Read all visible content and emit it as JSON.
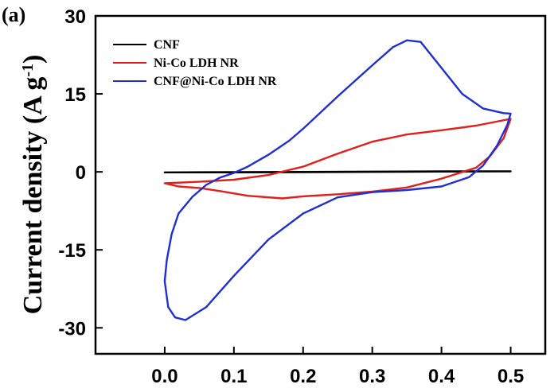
{
  "chart_data": {
    "type": "line",
    "panel_label": "(a)",
    "title": "",
    "xlabel": "",
    "ylabel": "Current density (A g-1)",
    "ylabel_parts": {
      "main": "Current density (A g",
      "sup": "-1",
      "end": ")"
    },
    "xlim": [
      -0.1,
      0.55
    ],
    "ylim": [
      -35,
      30
    ],
    "xticks": [
      0.0,
      0.1,
      0.2,
      0.3,
      0.4,
      0.5
    ],
    "xtick_labels": [
      "0.0",
      "0.1",
      "0.2",
      "0.3",
      "0.4",
      "0.5"
    ],
    "yticks": [
      -30,
      -15,
      0,
      15,
      30
    ],
    "ytick_labels": [
      "-30",
      "-15",
      "0",
      "15",
      "30"
    ],
    "grid": false,
    "legend_position": "top-left",
    "series": [
      {
        "name": "CNF",
        "color": "#000000",
        "closed": true,
        "points": [
          [
            0.0,
            -0.1
          ],
          [
            0.1,
            -0.1
          ],
          [
            0.2,
            -0.05
          ],
          [
            0.3,
            0.0
          ],
          [
            0.4,
            0.05
          ],
          [
            0.5,
            0.1
          ],
          [
            0.4,
            0.1
          ],
          [
            0.3,
            0.05
          ],
          [
            0.2,
            0.0
          ],
          [
            0.1,
            -0.05
          ]
        ]
      },
      {
        "name": "Ni-Co LDH NR",
        "color": "#e0201c",
        "closed": true,
        "points": [
          [
            0.0,
            -2.2
          ],
          [
            0.05,
            -1.9
          ],
          [
            0.1,
            -1.5
          ],
          [
            0.15,
            -0.6
          ],
          [
            0.2,
            1.0
          ],
          [
            0.25,
            3.5
          ],
          [
            0.3,
            5.8
          ],
          [
            0.35,
            7.2
          ],
          [
            0.4,
            8.0
          ],
          [
            0.45,
            8.9
          ],
          [
            0.5,
            10.2
          ],
          [
            0.49,
            6.5
          ],
          [
            0.47,
            3.0
          ],
          [
            0.45,
            0.8
          ],
          [
            0.4,
            -1.3
          ],
          [
            0.35,
            -3.0
          ],
          [
            0.3,
            -3.8
          ],
          [
            0.25,
            -4.3
          ],
          [
            0.2,
            -4.7
          ],
          [
            0.17,
            -5.1
          ],
          [
            0.12,
            -4.6
          ],
          [
            0.08,
            -3.7
          ],
          [
            0.05,
            -3.1
          ],
          [
            0.02,
            -2.8
          ]
        ]
      },
      {
        "name": "CNF@Ni-Co LDH NR",
        "color": "#1f2fd1",
        "closed": true,
        "points": [
          [
            0.0,
            -21.0
          ],
          [
            0.003,
            -17.0
          ],
          [
            0.01,
            -12.0
          ],
          [
            0.02,
            -8.0
          ],
          [
            0.04,
            -4.8
          ],
          [
            0.06,
            -2.5
          ],
          [
            0.08,
            -1.1
          ],
          [
            0.1,
            -0.2
          ],
          [
            0.12,
            1.0
          ],
          [
            0.15,
            3.3
          ],
          [
            0.18,
            6.0
          ],
          [
            0.2,
            8.3
          ],
          [
            0.25,
            14.5
          ],
          [
            0.3,
            20.5
          ],
          [
            0.33,
            24.0
          ],
          [
            0.35,
            25.3
          ],
          [
            0.37,
            25.0
          ],
          [
            0.4,
            20.0
          ],
          [
            0.43,
            15.0
          ],
          [
            0.46,
            12.2
          ],
          [
            0.49,
            11.3
          ],
          [
            0.5,
            11.2
          ],
          [
            0.495,
            9.0
          ],
          [
            0.48,
            5.0
          ],
          [
            0.46,
            1.2
          ],
          [
            0.44,
            -1.0
          ],
          [
            0.4,
            -2.8
          ],
          [
            0.35,
            -3.5
          ],
          [
            0.3,
            -3.9
          ],
          [
            0.25,
            -4.9
          ],
          [
            0.2,
            -8.0
          ],
          [
            0.15,
            -13.0
          ],
          [
            0.1,
            -20.0
          ],
          [
            0.06,
            -26.0
          ],
          [
            0.03,
            -28.5
          ],
          [
            0.015,
            -28.0
          ],
          [
            0.005,
            -26.0
          ]
        ]
      }
    ]
  }
}
